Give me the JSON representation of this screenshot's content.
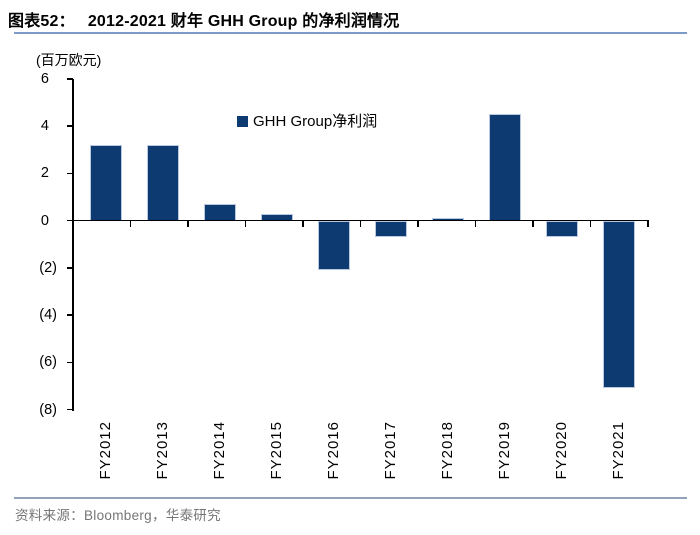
{
  "header": {
    "figure_label": "图表52：",
    "title": "2012-2021 财年 GHH Group 的净利润情况"
  },
  "chart_data": {
    "type": "bar",
    "title": "2012-2021 财年 GHH Group 的净利润情况",
    "unit_label": "(百万欧元)",
    "legend": "GHH Group净利润",
    "legend_position": "top-center-inside",
    "categories": [
      "FY2012",
      "FY2013",
      "FY2014",
      "FY2015",
      "FY2016",
      "FY2017",
      "FY2018",
      "FY2019",
      "FY2020",
      "FY2021"
    ],
    "values": [
      3.2,
      3.2,
      0.7,
      0.3,
      -2.1,
      -0.7,
      0.1,
      4.5,
      -0.7,
      -7.1
    ],
    "ylim": [
      -8,
      6
    ],
    "yticks": [
      6,
      4,
      2,
      0,
      -2,
      -4,
      -6,
      -8
    ],
    "ytick_labels": [
      "6",
      "4",
      "2",
      "0",
      "(2)",
      "(4)",
      "(6)",
      "(8)"
    ],
    "grid": false,
    "bar_color": "#0e3a72",
    "bar_border_color": "#b9c8de",
    "axis_color": "#000000"
  },
  "footer": {
    "source": "资料来源：Bloomberg，华泰研究"
  },
  "colors": {
    "background": "#ffffff",
    "title_rule": "#7d9ac8",
    "footer_rule": "#92a2b8",
    "footer_text": "#767676"
  }
}
